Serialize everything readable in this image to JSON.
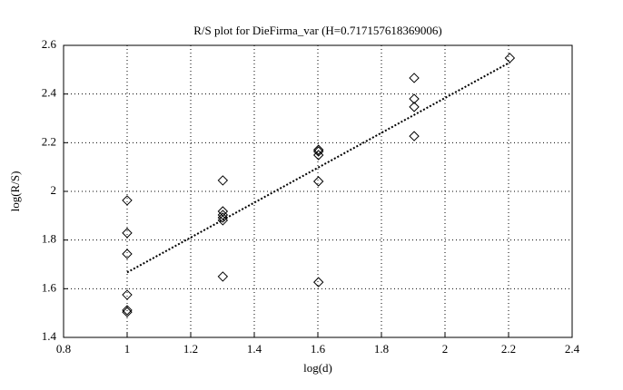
{
  "chart_data": {
    "type": "scatter",
    "title": "R/S plot for DieFirma_var (H=0.717157618369006)",
    "x_label": "log(d)",
    "y_label": "log(R/S)",
    "xlim": [
      0.8,
      2.4
    ],
    "xticks": [
      0.8,
      1,
      1.2,
      1.4,
      1.6,
      1.8,
      2,
      2.2,
      2.4
    ],
    "ylim": [
      1.4,
      2.6
    ],
    "yticks": [
      1.4,
      1.6,
      1.8,
      2,
      2.2,
      2.4,
      2.6
    ],
    "grid": true,
    "series": [
      {
        "color": "#000000",
        "marker": "diamond",
        "x": [
          1,
          1,
          1,
          1,
          1,
          1,
          1.301,
          1.301,
          1.301,
          1.301,
          1.301,
          1.301,
          1.602,
          1.602,
          1.602,
          1.602,
          1.602,
          1.903,
          1.903,
          1.903,
          1.903,
          2.204
        ],
        "values": [
          1.963,
          1.829,
          1.743,
          1.575,
          1.512,
          1.504,
          2.045,
          1.918,
          1.903,
          1.892,
          1.881,
          1.65,
          2.171,
          2.164,
          2.149,
          2.041,
          1.627,
          2.466,
          2.38,
          2.347,
          2.227,
          2.548
        ]
      },
      {
        "color": "#000000",
        "style": "dotted",
        "x": [
          1,
          2.204
        ],
        "values": [
          1.667,
          2.53
        ]
      }
    ]
  }
}
